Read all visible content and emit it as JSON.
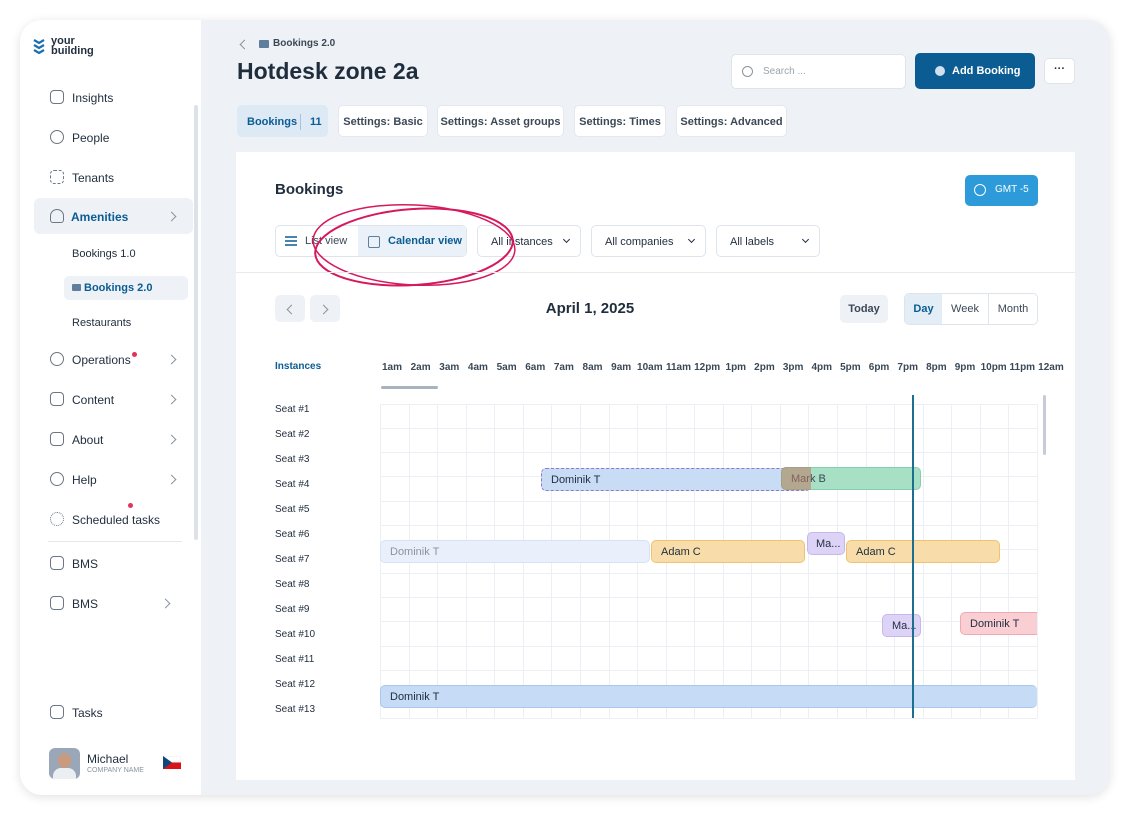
{
  "brand": {
    "line1": "your",
    "line2": "building"
  },
  "sidebar": {
    "nav": [
      "Insights",
      "People",
      "Tenants",
      "Amenities"
    ],
    "amenities_sub": [
      "Bookings 1.0",
      "Bookings 2.0",
      "Restaurants"
    ],
    "nav2": [
      "Operations",
      "Content",
      "About",
      "Help",
      "Scheduled tasks"
    ],
    "links": [
      "BMS",
      "BMS"
    ],
    "tasks": "Tasks",
    "user": {
      "name": "Michael",
      "company": "COMPANY NAME"
    }
  },
  "header": {
    "breadcrumb": "Bookings 2.0",
    "title": "Hotdesk zone 2a",
    "search_placeholder": "Search ...",
    "add_button": "Add Booking"
  },
  "tabs": {
    "active": {
      "label": "Bookings",
      "count": 11
    },
    "others": [
      "Settings: Basic",
      "Settings: Asset groups",
      "Settings: Times",
      "Settings: Advanced"
    ]
  },
  "panel": {
    "title": "Bookings",
    "timezone": "GMT -5",
    "views": [
      "List view",
      "Calendar view"
    ],
    "filters": [
      "All instances",
      "All companies",
      "All labels"
    ],
    "date": "April 1, 2025",
    "today": "Today",
    "ranges": [
      "Day",
      "Week",
      "Month"
    ],
    "instances_label": "Instances",
    "hours": [
      "1am",
      "2am",
      "3am",
      "4am",
      "5am",
      "6am",
      "7am",
      "8am",
      "9am",
      "10am",
      "11am",
      "12pm",
      "1pm",
      "2pm",
      "3pm",
      "4pm",
      "5pm",
      "6pm",
      "7pm",
      "8pm",
      "9pm",
      "10pm",
      "11pm",
      "12am"
    ],
    "seats": [
      "Seat #1",
      "Seat #2",
      "Seat #3",
      "Seat #4",
      "Seat #5",
      "Seat #6",
      "Seat #7",
      "Seat #8",
      "Seat #9",
      "Seat #10",
      "Seat #11",
      "Seat #12",
      "Seat #13"
    ],
    "bookings": [
      "Dominik T",
      "Mark B",
      "Ma...",
      "Dominik T",
      "Adam C",
      "Adam C",
      "Ma...",
      "Dominik T",
      "Dominik T"
    ]
  }
}
